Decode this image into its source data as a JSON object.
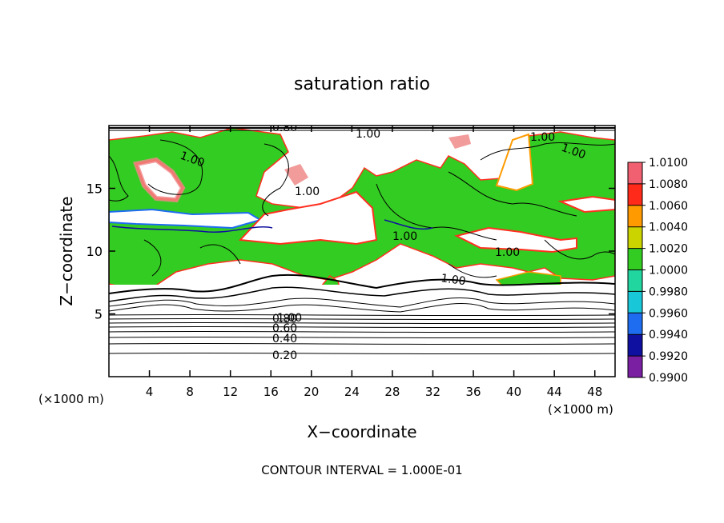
{
  "chart_data": {
    "type": "heatmap",
    "title": "saturation ratio",
    "xlabel": "X−coordinate",
    "ylabel": "Z−coordinate",
    "x_unit_left": "(×1000 m)",
    "x_unit_right": "(×1000 m)",
    "footer": "CONTOUR INTERVAL = 1.000E-01",
    "xlim": [
      0,
      50
    ],
    "ylim": [
      0,
      20
    ],
    "x_ticks": [
      "4",
      "8",
      "12",
      "16",
      "20",
      "24",
      "28",
      "32",
      "36",
      "40",
      "44",
      "48"
    ],
    "y_ticks": [
      "5",
      "10",
      "15"
    ],
    "colorbar": {
      "levels": [
        "0.9900",
        "0.9920",
        "0.9940",
        "0.9960",
        "0.9980",
        "1.0000",
        "1.0020",
        "1.0040",
        "1.0060",
        "1.0080",
        "1.0100"
      ],
      "colors": [
        "#7a1fa2",
        "#1010a0",
        "#1e6cf0",
        "#18c8d8",
        "#22d6a0",
        "#33cc22",
        "#ccd400",
        "#ff9a00",
        "#ff2a1a",
        "#f06070"
      ]
    },
    "contour_labels": [
      "0.20",
      "0.40",
      "0.60",
      "0.80",
      "0.80",
      "1.00",
      "1.00",
      "1.00",
      "1.00",
      "1.00",
      "1.00",
      "1.00",
      "1.00",
      "1.00"
    ],
    "colors": {
      "green": "#33cc22",
      "pink": "#f08a8a",
      "red": "#ff3020",
      "orange": "#ff9a00",
      "blue": "#1e6cf0"
    }
  }
}
